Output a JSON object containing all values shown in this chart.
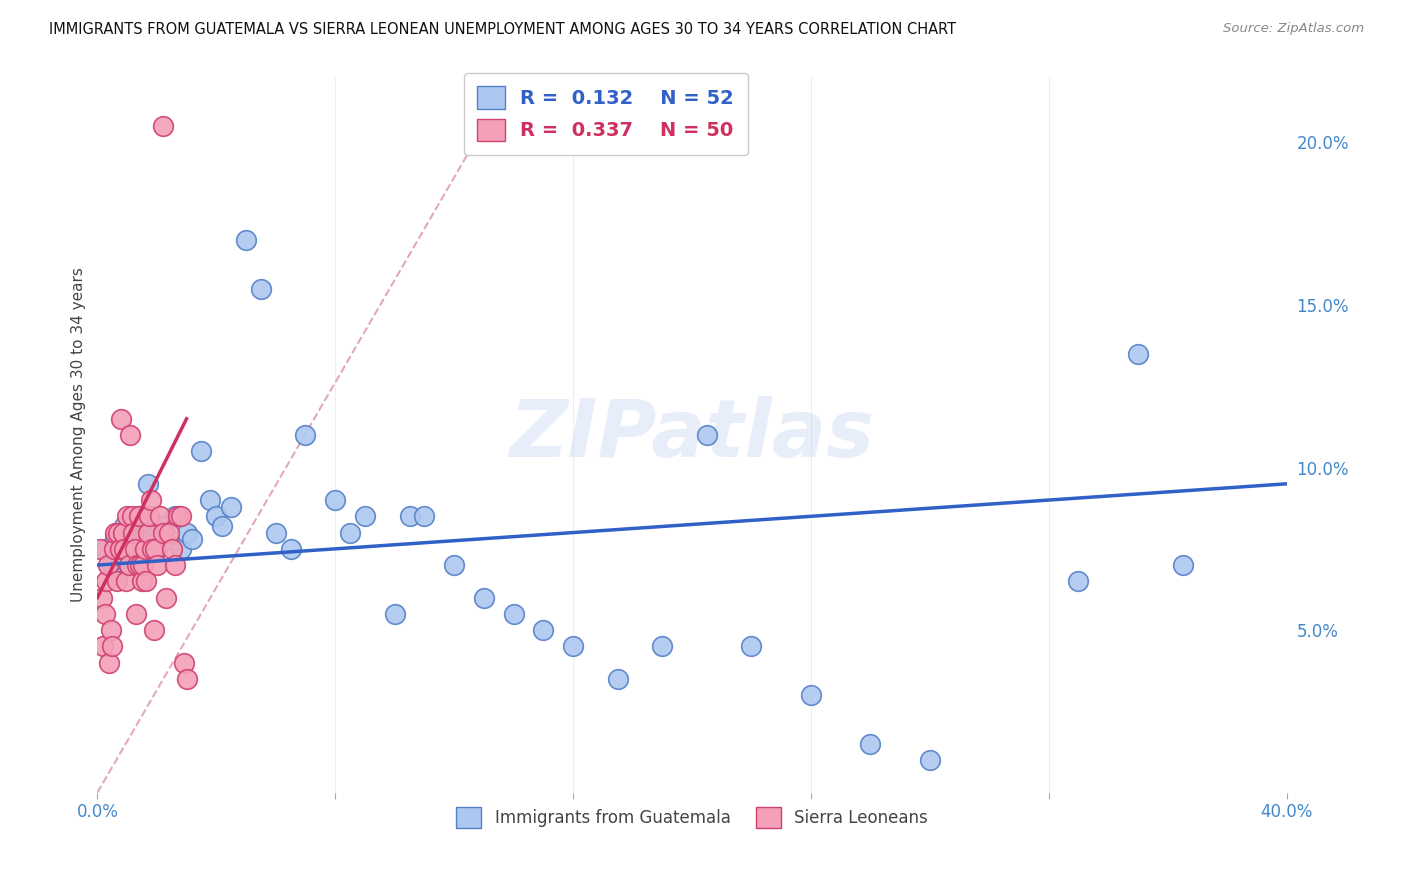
{
  "title": "IMMIGRANTS FROM GUATEMALA VS SIERRA LEONEAN UNEMPLOYMENT AMONG AGES 30 TO 34 YEARS CORRELATION CHART",
  "source": "Source: ZipAtlas.com",
  "ylabel": "Unemployment Among Ages 30 to 34 years",
  "right_yticks": [
    "5.0%",
    "10.0%",
    "15.0%",
    "20.0%"
  ],
  "right_ytick_vals": [
    5.0,
    10.0,
    15.0,
    20.0
  ],
  "xlim": [
    0.0,
    40.0
  ],
  "ylim": [
    0.0,
    22.0
  ],
  "legend1_R": "0.132",
  "legend1_N": "52",
  "legend2_R": "0.337",
  "legend2_N": "50",
  "blue_color": "#adc8f0",
  "pink_color": "#f4a0b8",
  "blue_edge_color": "#5580c8",
  "pink_edge_color": "#d04070",
  "blue_line_color": "#3060c8",
  "pink_line_color": "#d03060",
  "dashed_line_color": "#e0a0b0",
  "grid_color": "#d8d8e8",
  "background_color": "#ffffff",
  "blue_scatter_x": [
    0.3,
    0.5,
    0.6,
    0.8,
    0.9,
    1.0,
    1.1,
    1.2,
    1.3,
    1.4,
    1.5,
    1.6,
    1.7,
    1.8,
    2.0,
    2.2,
    2.4,
    2.6,
    2.8,
    3.0,
    3.2,
    3.5,
    3.8,
    4.0,
    4.2,
    4.5,
    5.0,
    5.5,
    6.0,
    6.5,
    7.0,
    8.0,
    8.5,
    9.0,
    10.0,
    10.5,
    11.0,
    12.0,
    13.0,
    14.0,
    15.0,
    16.0,
    17.5,
    19.0,
    20.5,
    22.0,
    24.0,
    26.0,
    28.0,
    33.0,
    35.0,
    36.5
  ],
  "blue_scatter_y": [
    7.5,
    7.0,
    7.8,
    7.2,
    8.2,
    7.5,
    8.0,
    7.3,
    7.8,
    8.5,
    7.0,
    8.0,
    9.5,
    7.8,
    7.5,
    8.2,
    7.8,
    8.5,
    7.5,
    8.0,
    7.8,
    10.5,
    9.0,
    8.5,
    8.2,
    8.8,
    17.0,
    15.5,
    8.0,
    7.5,
    11.0,
    9.0,
    8.0,
    8.5,
    5.5,
    8.5,
    8.5,
    7.0,
    6.0,
    5.5,
    5.0,
    4.5,
    3.5,
    4.5,
    11.0,
    4.5,
    3.0,
    1.5,
    1.0,
    6.5,
    13.5,
    7.0
  ],
  "pink_scatter_x": [
    0.1,
    0.15,
    0.2,
    0.25,
    0.3,
    0.35,
    0.4,
    0.45,
    0.5,
    0.55,
    0.6,
    0.65,
    0.7,
    0.75,
    0.8,
    0.85,
    0.9,
    0.95,
    1.0,
    1.05,
    1.1,
    1.15,
    1.2,
    1.25,
    1.3,
    1.35,
    1.4,
    1.45,
    1.5,
    1.55,
    1.6,
    1.65,
    1.7,
    1.75,
    1.8,
    1.85,
    1.9,
    1.95,
    2.0,
    2.1,
    2.2,
    2.3,
    2.4,
    2.5,
    2.6,
    2.7,
    2.8,
    2.9,
    3.0,
    2.2
  ],
  "pink_scatter_y": [
    7.5,
    6.0,
    4.5,
    5.5,
    6.5,
    7.0,
    4.0,
    5.0,
    4.5,
    7.5,
    8.0,
    6.5,
    8.0,
    7.5,
    11.5,
    8.0,
    7.5,
    6.5,
    8.5,
    7.0,
    11.0,
    8.5,
    8.0,
    7.5,
    5.5,
    7.0,
    8.5,
    7.0,
    6.5,
    7.0,
    7.5,
    6.5,
    8.0,
    8.5,
    9.0,
    7.5,
    5.0,
    7.5,
    7.0,
    8.5,
    8.0,
    6.0,
    8.0,
    7.5,
    7.0,
    8.5,
    8.5,
    4.0,
    3.5,
    20.5
  ],
  "blue_trend_x": [
    0.0,
    40.0
  ],
  "blue_trend_y": [
    7.0,
    9.5
  ],
  "pink_trend_x": [
    0.0,
    3.0
  ],
  "pink_trend_y": [
    6.0,
    11.5
  ],
  "diag_line_x": [
    0.0,
    13.0
  ],
  "diag_line_y": [
    0.0,
    20.5
  ]
}
